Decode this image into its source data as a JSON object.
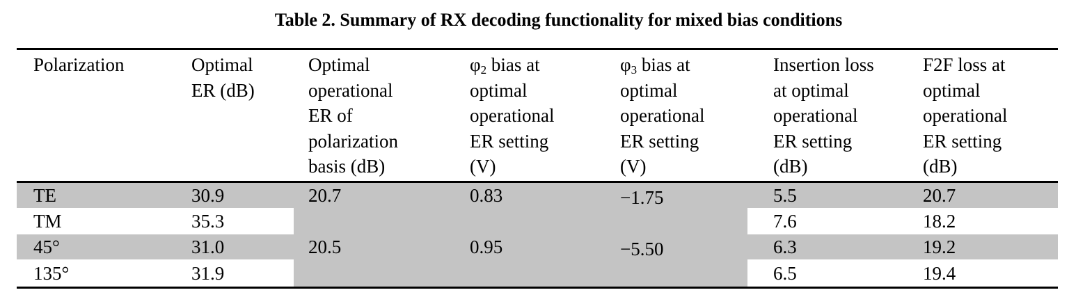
{
  "caption": "Table 2. Summary of RX decoding functionality for mixed bias conditions",
  "colors": {
    "shading": "#c4c4c4",
    "rule": "#000000"
  },
  "headers": [
    [
      "Polarization"
    ],
    [
      "Optimal",
      "ER (dB)"
    ],
    [
      "Optimal",
      "operational",
      "ER of",
      "polarization",
      "basis (dB)"
    ],
    {
      "symbol": "φ",
      "sub": "2",
      "rest": " bias at",
      "lines": [
        "optimal",
        "operational",
        "ER setting",
        "(V)"
      ]
    },
    {
      "symbol": "φ",
      "sub": "3",
      "rest": " bias at",
      "lines": [
        "optimal",
        "operational",
        "ER setting",
        "(V)"
      ]
    },
    [
      "Insertion loss",
      "at optimal",
      "operational",
      "ER setting",
      "(dB)"
    ],
    [
      "F2F loss at",
      "optimal",
      "operational",
      "ER setting",
      "(dB)"
    ]
  ],
  "rows": [
    {
      "polarization": "TE",
      "optimal_er": "30.9",
      "insertion_loss": "5.5",
      "f2f_loss": "20.7"
    },
    {
      "polarization": "TM",
      "optimal_er": "35.3",
      "insertion_loss": "7.6",
      "f2f_loss": "18.2"
    },
    {
      "polarization": "45°",
      "optimal_er": "31.0",
      "insertion_loss": "6.3",
      "f2f_loss": "19.2"
    },
    {
      "polarization": "135°",
      "optimal_er": "31.9",
      "insertion_loss": "6.5",
      "f2f_loss": "19.4"
    }
  ],
  "merged": [
    {
      "operational_er": "20.7",
      "phi2_bias": "0.83",
      "phi3_bias": "−1.75"
    },
    {
      "operational_er": "20.5",
      "phi2_bias": "0.95",
      "phi3_bias": "−5.50"
    }
  ]
}
